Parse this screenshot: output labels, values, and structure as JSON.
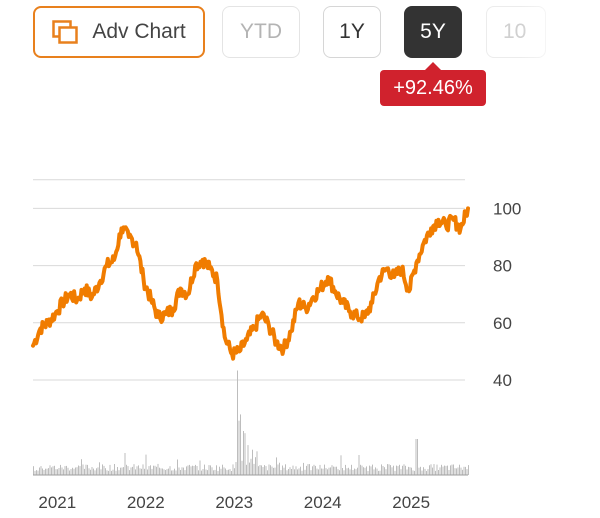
{
  "toolbar": {
    "adv_chart_label": "Adv Chart",
    "ranges": [
      {
        "label": "YTD",
        "state": "disabled"
      },
      {
        "label": "1Y",
        "state": "normal"
      },
      {
        "label": "5Y",
        "state": "selected"
      },
      {
        "label": "10",
        "state": "disabled"
      }
    ],
    "icons": {
      "adv_chart": "chart-layers-icon"
    }
  },
  "change_badge": {
    "text": "+92.46%",
    "color": "#d0222d"
  },
  "colors": {
    "accent": "#e8801d",
    "line": "#f07c00",
    "volume": "#bdbdbd",
    "grid": "#d9d9d9",
    "selected_bg": "#333333"
  },
  "chart_data": {
    "type": "line",
    "y_axis_position": "right",
    "yticks": [
      "100",
      "80",
      "60",
      "40"
    ],
    "ylim": [
      40,
      110
    ],
    "xticks": [
      "2021",
      "2022",
      "2023",
      "2024",
      "2025"
    ],
    "x_start": "2020-12",
    "x_end": "2025-11",
    "series": [
      {
        "type": "line",
        "points": [
          [
            "2020-12",
            52
          ],
          [
            "2021-01",
            58
          ],
          [
            "2021-02",
            60
          ],
          [
            "2021-03",
            63
          ],
          [
            "2021-04",
            67
          ],
          [
            "2021-05",
            70
          ],
          [
            "2021-06",
            68
          ],
          [
            "2021-07",
            72
          ],
          [
            "2021-08",
            69
          ],
          [
            "2021-09",
            74
          ],
          [
            "2021-10",
            80
          ],
          [
            "2021-11",
            82
          ],
          [
            "2021-12",
            93
          ],
          [
            "2022-01",
            90
          ],
          [
            "2022-02",
            88
          ],
          [
            "2022-03",
            75
          ],
          [
            "2022-04",
            68
          ],
          [
            "2022-05",
            62
          ],
          [
            "2022-06",
            63
          ],
          [
            "2022-07",
            65
          ],
          [
            "2022-08",
            72
          ],
          [
            "2022-09",
            70
          ],
          [
            "2022-10",
            80
          ],
          [
            "2022-11",
            82
          ],
          [
            "2022-12",
            79
          ],
          [
            "2023-01",
            75
          ],
          [
            "2023-02",
            55
          ],
          [
            "2023-03",
            49
          ],
          [
            "2023-04",
            50
          ],
          [
            "2023-05",
            54
          ],
          [
            "2023-06",
            58
          ],
          [
            "2023-07",
            63
          ],
          [
            "2023-08",
            59
          ],
          [
            "2023-09",
            53
          ],
          [
            "2023-10",
            51
          ],
          [
            "2023-11",
            57
          ],
          [
            "2023-12",
            67
          ],
          [
            "2024-01",
            65
          ],
          [
            "2024-02",
            69
          ],
          [
            "2024-03",
            72
          ],
          [
            "2024-04",
            76
          ],
          [
            "2024-05",
            71
          ],
          [
            "2024-06",
            67
          ],
          [
            "2024-07",
            64
          ],
          [
            "2024-08",
            62
          ],
          [
            "2024-09",
            62
          ],
          [
            "2024-10",
            67
          ],
          [
            "2024-11",
            76
          ],
          [
            "2024-12",
            79
          ],
          [
            "2025-01",
            76
          ],
          [
            "2025-02",
            79
          ],
          [
            "2025-03",
            71
          ],
          [
            "2025-04",
            81
          ],
          [
            "2025-05",
            88
          ],
          [
            "2025-06",
            93
          ],
          [
            "2025-07",
            96
          ],
          [
            "2025-08",
            94
          ],
          [
            "2025-09",
            96
          ],
          [
            "2025-10",
            93
          ],
          [
            "2025-11",
            100
          ]
        ]
      }
    ]
  }
}
